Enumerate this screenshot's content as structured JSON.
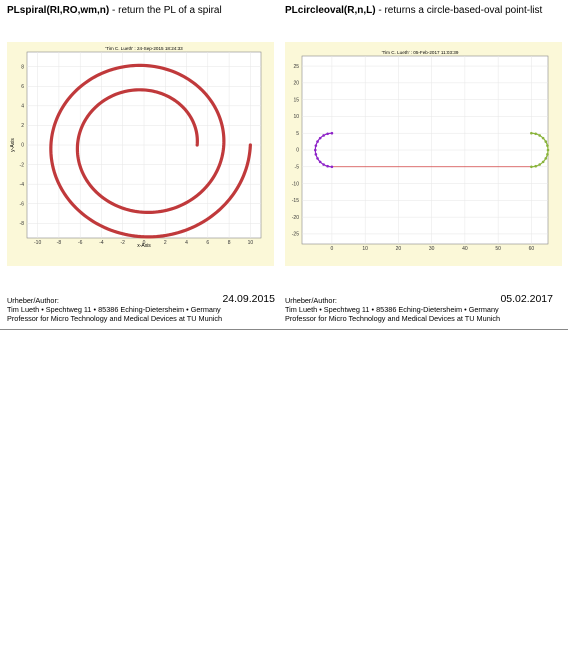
{
  "left": {
    "heading_bold": "PLspiral(RI,RO,wm,n)",
    "heading_rest": " - return the PL of a spiral",
    "plot": {
      "title": "'Tim C. Lueth' : 24-Sep-2015 18:24:33",
      "xlabel": "x-Axis",
      "ylabel": "y-Axis",
      "xticks": [
        "-10",
        "-8",
        "-6",
        "-4",
        "-2",
        "0",
        "2",
        "4",
        "6",
        "8",
        "10"
      ],
      "yticks": [
        "8",
        "6",
        "4",
        "2",
        "0",
        "-2",
        "-4",
        "-6",
        "-8"
      ],
      "line_color": "#c0393b"
    },
    "author_label": "Urheber/Author:",
    "date": "24.09.2015",
    "line1": "Tim Lueth • Spechtweg 11 • 85386 Eching-Dietersheim • Germany",
    "line2": "Professor for Micro Technology and Medical Devices at TU Munich"
  },
  "right": {
    "heading_bold": "PLcircleoval(R,n,L)",
    "heading_rest": " - returns a circle-based-oval point-list",
    "plot": {
      "title": "'Tim C. Lueth' : 05-Feb-2017 11:03:39",
      "xticks": [
        "0",
        "10",
        "20",
        "30",
        "40",
        "50",
        "60"
      ],
      "yticks": [
        "25",
        "20",
        "15",
        "10",
        "5",
        "0",
        "-5",
        "-10",
        "-15",
        "-20",
        "-25"
      ],
      "left_arc_color": "#8e24c8",
      "right_arc_color": "#8ab43c",
      "line_color": "#d04040"
    },
    "author_label": "Urheber/Author:",
    "date": "05.02.2017",
    "line1": "Tim Lueth • Spechtweg 11 • 85386 Eching-Dietersheim • Germany",
    "line2": "Professor for Micro Technology and Medical Devices at TU Munich"
  }
}
